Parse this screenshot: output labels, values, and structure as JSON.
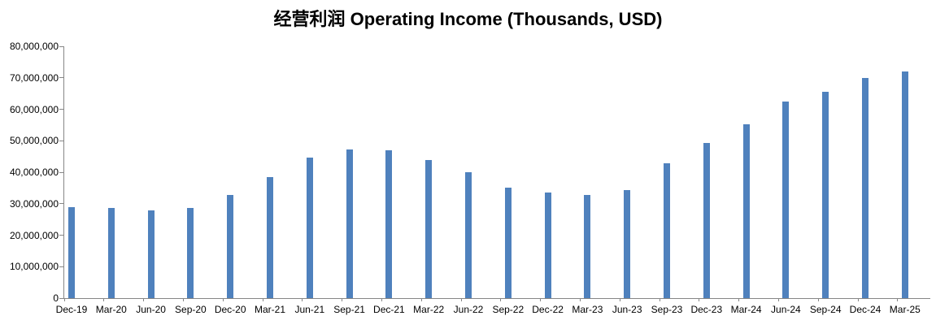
{
  "chart_data": {
    "type": "bar",
    "title": "经营利润 Operating Income (Thousands, USD)",
    "categories": [
      "Dec-19",
      "Mar-20",
      "Jun-20",
      "Sep-20",
      "Dec-20",
      "Mar-21",
      "Jun-21",
      "Sep-21",
      "Dec-21",
      "Mar-22",
      "Jun-22",
      "Sep-22",
      "Dec-22",
      "Mar-23",
      "Jun-23",
      "Sep-23",
      "Dec-23",
      "Mar-24",
      "Jun-24",
      "Sep-24",
      "Dec-24",
      "Mar-25"
    ],
    "values": [
      29000000,
      28600000,
      27800000,
      28700000,
      32700000,
      38400000,
      44700000,
      47200000,
      47000000,
      44000000,
      39900000,
      35200000,
      33600000,
      32900000,
      34200000,
      42800000,
      49200000,
      55300000,
      62500000,
      65500000,
      70000000,
      72100000
    ],
    "xlabel": "",
    "ylabel": "",
    "ylim": [
      0,
      80000000
    ],
    "ytick_step": 10000000,
    "ytick_labels": [
      "0",
      "10,000,000",
      "20,000,000",
      "30,000,000",
      "40,000,000",
      "50,000,000",
      "60,000,000",
      "70,000,000",
      "80,000,000"
    ],
    "grid": false,
    "legend": "none",
    "bar_color": "#4F81BD",
    "axis_color": "#868686",
    "text_color": "#000000",
    "background_color": "#FFFFFF"
  }
}
